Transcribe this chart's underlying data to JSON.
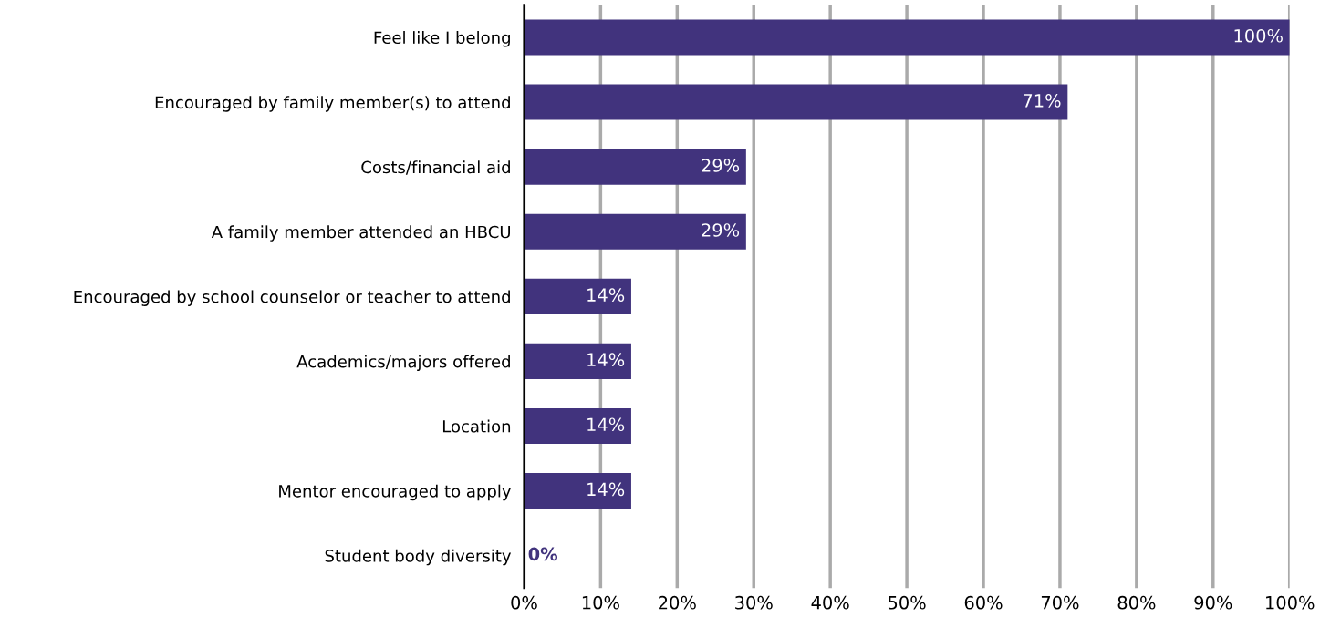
{
  "chart_data": {
    "type": "bar",
    "orientation": "horizontal",
    "categories": [
      "Feel like I belong",
      "Encouraged by family member(s) to attend",
      "Costs/financial aid",
      "A family member attended an HBCU",
      "Encouraged by school counselor or teacher to attend",
      "Academics/majors offered",
      "Location",
      "Mentor encouraged to apply",
      "Student body diversity"
    ],
    "values": [
      100,
      71,
      29,
      29,
      14,
      14,
      14,
      14,
      0
    ],
    "value_labels": [
      "100%",
      "71%",
      "29%",
      "29%",
      "14%",
      "14%",
      "14%",
      "14%",
      "0%"
    ],
    "color": "#41337d",
    "xlim": [
      0,
      100
    ],
    "xticks": [
      {
        "value": 0,
        "label": "0%"
      },
      {
        "value": 10,
        "label": "10%"
      },
      {
        "value": 20,
        "label": "20%"
      },
      {
        "value": 30,
        "label": "30%"
      },
      {
        "value": 40,
        "label": "40%"
      },
      {
        "value": 50,
        "label": "50%"
      },
      {
        "value": 60,
        "label": "60%"
      },
      {
        "value": 70,
        "label": "70%"
      },
      {
        "value": 80,
        "label": "80%"
      },
      {
        "value": 90,
        "label": "90%"
      },
      {
        "value": 100,
        "label": "100%"
      }
    ],
    "grid": "x"
  }
}
